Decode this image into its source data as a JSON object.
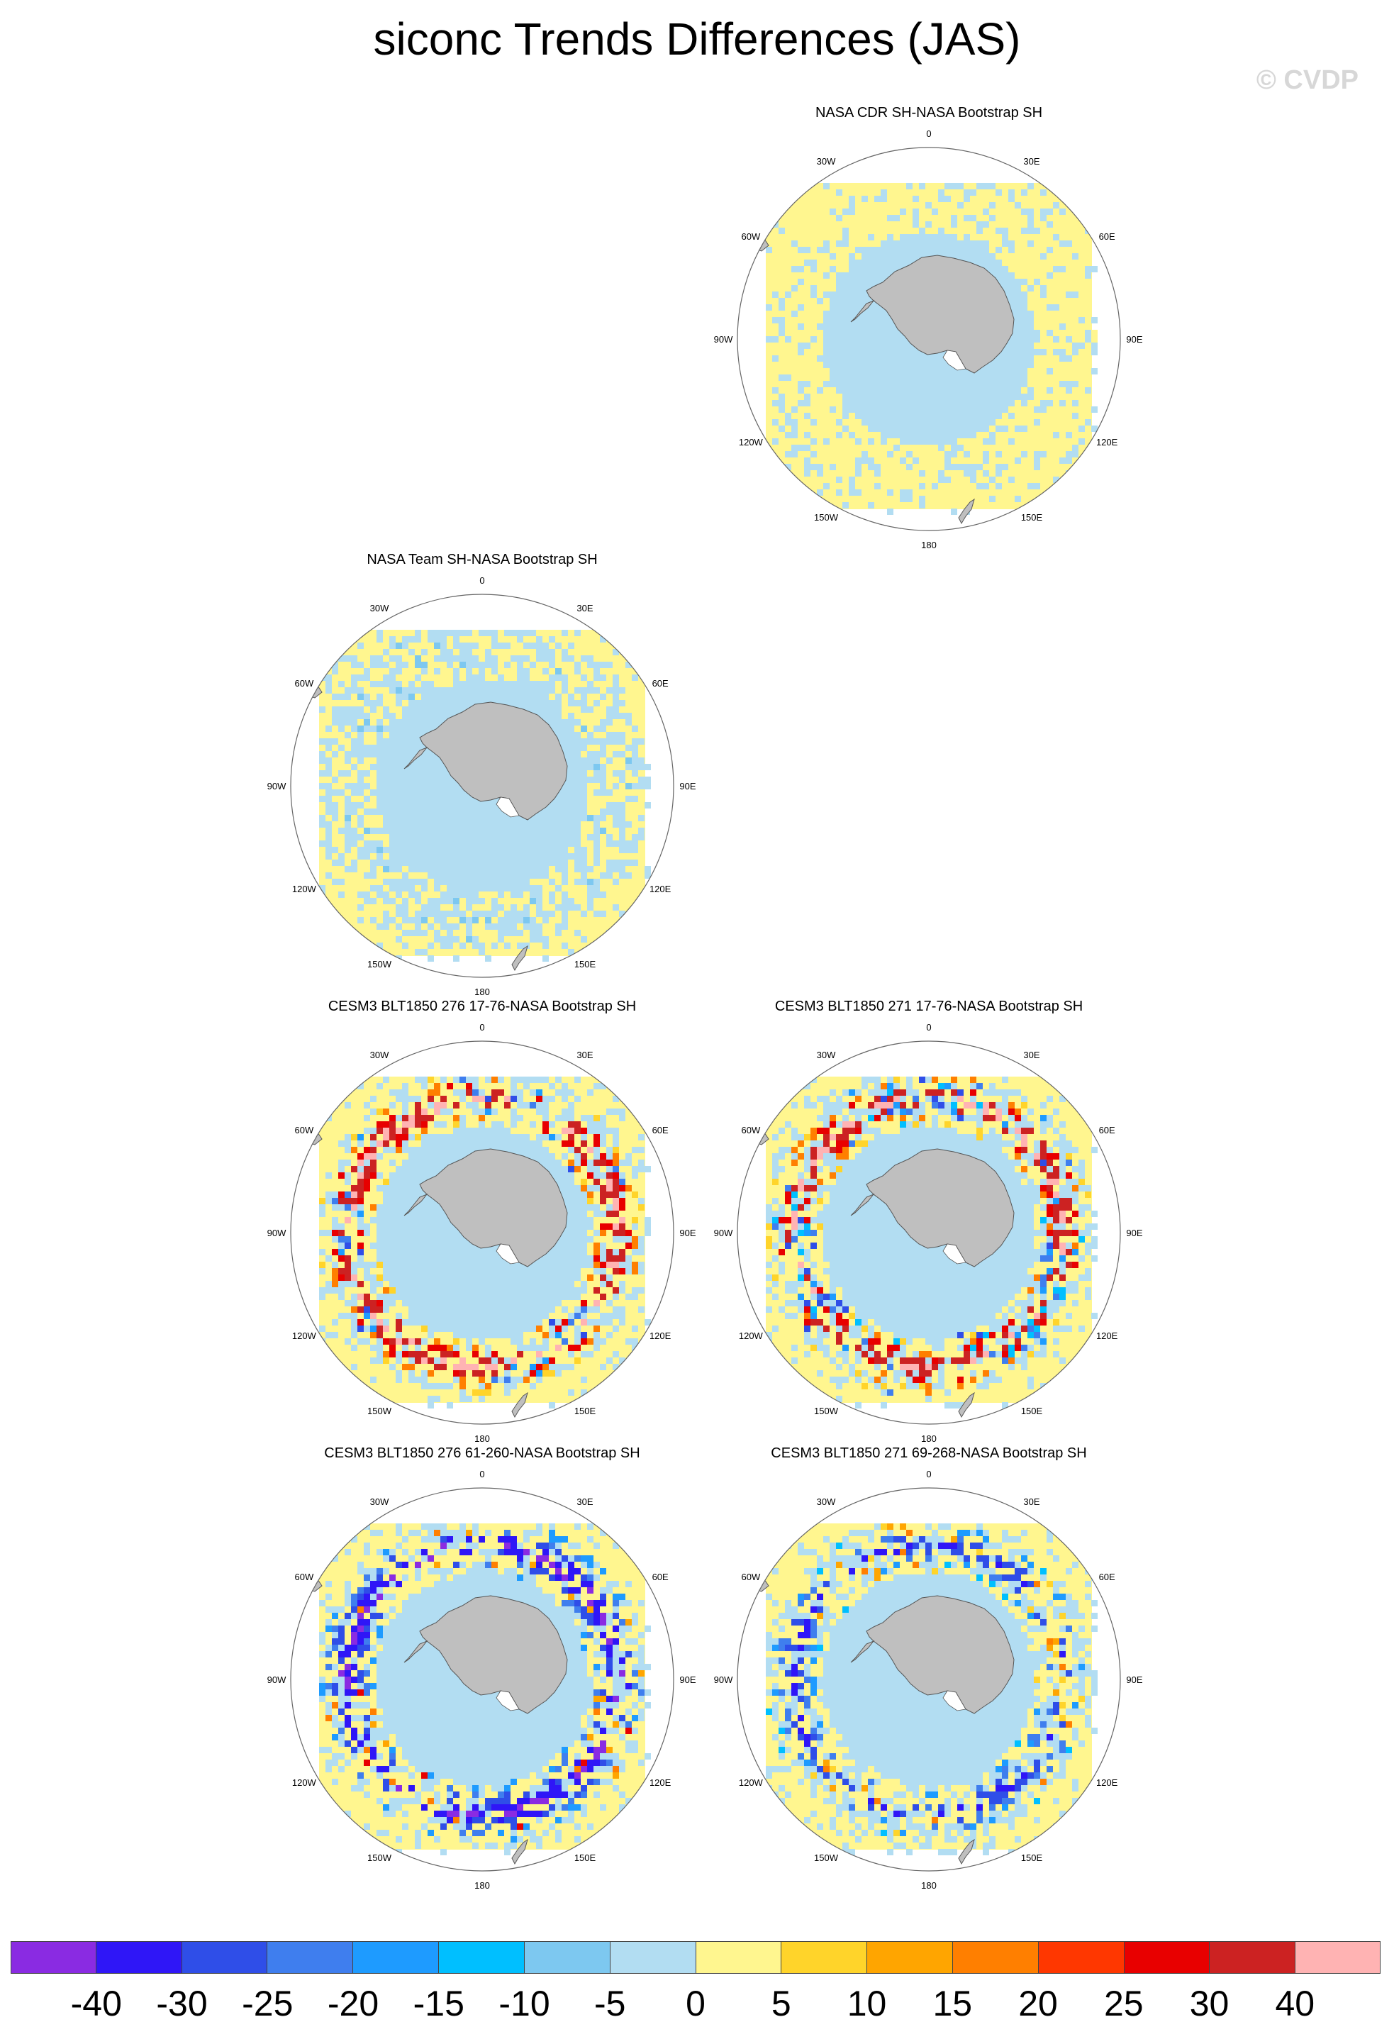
{
  "title": "siconc Trends Differences (JAS)",
  "watermark": "© CVDP",
  "longitude_labels": [
    "0",
    "30E",
    "60E",
    "90E",
    "120E",
    "150E",
    "180",
    "150W",
    "120W",
    "90W",
    "60W",
    "30W"
  ],
  "panels": [
    {
      "title": "NASA CDR SH-NASA Bootstrap SH",
      "pattern": "weak-positive-noise"
    },
    {
      "title": "NASA Team SH-NASA Bootstrap SH",
      "pattern": "weak-negative-noise"
    },
    {
      "title": "CESM3 BLT1850 276 17-76-NASA Bootstrap SH",
      "pattern": "strong-positive-ring"
    },
    {
      "title": "CESM3 BLT1850 271 17-76-NASA Bootstrap SH",
      "pattern": "strong-positive-ring-mixed"
    },
    {
      "title": "CESM3 BLT1850 276 61-260-NASA Bootstrap SH",
      "pattern": "strong-negative-ring"
    },
    {
      "title": "CESM3 BLT1850 271 69-268-NASA Bootstrap SH",
      "pattern": "negative-ring-mixed"
    }
  ],
  "colorbar": {
    "colors": [
      "#8a2be2",
      "#2f16f7",
      "#2f4ee8",
      "#3f7eee",
      "#1e9bff",
      "#00bfff",
      "#7dc8f0",
      "#b2ddf2",
      "#fff68f",
      "#ffd42a",
      "#ffa500",
      "#ff7f00",
      "#ff3700",
      "#e80000",
      "#cc2222",
      "#ffb3b3"
    ],
    "labels": [
      "-40",
      "-30",
      "-25",
      "-20",
      "-15",
      "-10",
      "-5",
      "0",
      "5",
      "10",
      "15",
      "20",
      "25",
      "30",
      "40"
    ]
  }
}
